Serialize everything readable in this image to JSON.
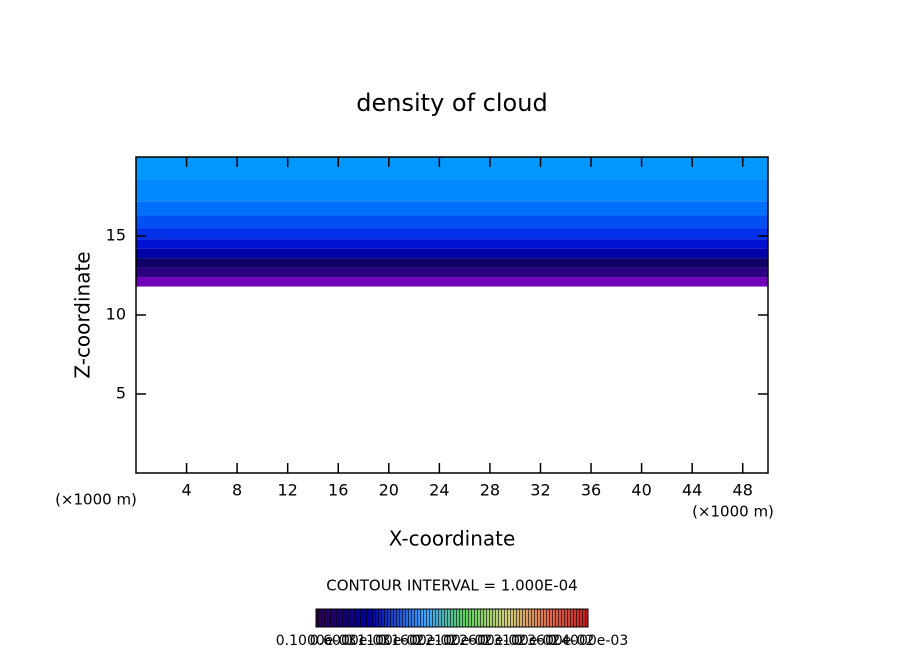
{
  "chart_data": {
    "type": "contour",
    "title": "density of cloud",
    "x_label": "X-coordinate",
    "y_label": "Z-coordinate",
    "x_unit_label": "(×1000 m)",
    "y_unit_label": "(×1000 m)",
    "contour_interval": "CONTOUR INTERVAL = 1.000E-04",
    "xlim": [
      0,
      50
    ],
    "xticks": [
      4,
      8,
      12,
      16,
      20,
      24,
      28,
      32,
      36,
      40,
      44,
      48
    ],
    "ylim": [
      0,
      20
    ],
    "yticks": [
      5,
      10,
      15
    ],
    "bands": [
      {
        "zmin": 11.8,
        "zmax": 12.4,
        "color": "#7000b8"
      },
      {
        "zmin": 12.4,
        "zmax": 13.0,
        "color": "#2a0080"
      },
      {
        "zmin": 13.0,
        "zmax": 13.6,
        "color": "#100068"
      },
      {
        "zmin": 13.6,
        "zmax": 14.2,
        "color": "#0000a8"
      },
      {
        "zmin": 14.2,
        "zmax": 14.8,
        "color": "#0010d0"
      },
      {
        "zmin": 14.8,
        "zmax": 15.5,
        "color": "#0030e8"
      },
      {
        "zmin": 15.5,
        "zmax": 16.3,
        "color": "#0050f4"
      },
      {
        "zmin": 16.3,
        "zmax": 17.2,
        "color": "#0070fa"
      },
      {
        "zmin": 17.2,
        "zmax": 18.6,
        "color": "#0088ff"
      },
      {
        "zmin": 18.6,
        "zmax": 20,
        "color": "#0098ff"
      }
    ],
    "colorbar_labels": [
      "0.1000e-03",
      "0.6000e-03",
      "0.1100e-02",
      "0.1600e-02",
      "0.2100e-02",
      "0.2600e-02",
      "0.3100e-02",
      "0.3600e-02",
      "0.4000e-03"
    ]
  }
}
